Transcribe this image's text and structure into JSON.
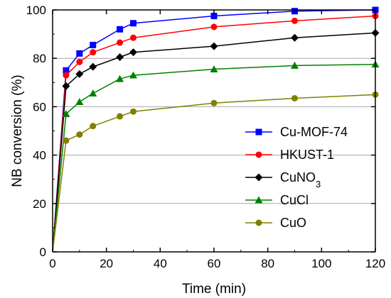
{
  "chart_data": {
    "type": "line",
    "title": "",
    "xlabel": "Time (min)",
    "ylabel": "NB conversion (%)",
    "xlim": [
      0,
      120
    ],
    "ylim": [
      0,
      100
    ],
    "xticks": [
      "0",
      "20",
      "40",
      "60",
      "80",
      "100",
      "120"
    ],
    "yticks": [
      "0",
      "20",
      "40",
      "60",
      "80",
      "100"
    ],
    "grid": "horizontal",
    "legend_position": "bottom-right",
    "x": [
      0,
      5,
      10,
      15,
      25,
      30,
      60,
      90,
      120
    ],
    "series": [
      {
        "name": "Cu-MOF-74",
        "color": "#0000ff",
        "marker": "square",
        "values": [
          0,
          75,
          82,
          85.5,
          92,
          94.5,
          97.5,
          99.5,
          100
        ]
      },
      {
        "name": "HKUST-1",
        "color": "#ff0000",
        "marker": "circle",
        "values": [
          0,
          73,
          78.5,
          82.5,
          86.5,
          88.5,
          93,
          95.5,
          97.5
        ]
      },
      {
        "name": "CuNO3",
        "display_base": "CuNO",
        "display_sub": "3",
        "color": "#000000",
        "marker": "diamond",
        "values": [
          0,
          68.5,
          73.5,
          76.5,
          80.5,
          82.5,
          85,
          88.5,
          90.5
        ]
      },
      {
        "name": "CuCl",
        "color": "#008000",
        "marker": "triangle",
        "values": [
          0,
          57,
          62,
          65.5,
          71.5,
          73,
          75.5,
          77,
          77.5
        ]
      },
      {
        "name": "CuO",
        "color": "#808000",
        "marker": "circle",
        "values": [
          0,
          46,
          48.5,
          52,
          56,
          58,
          61.5,
          63.5,
          65
        ]
      }
    ]
  }
}
